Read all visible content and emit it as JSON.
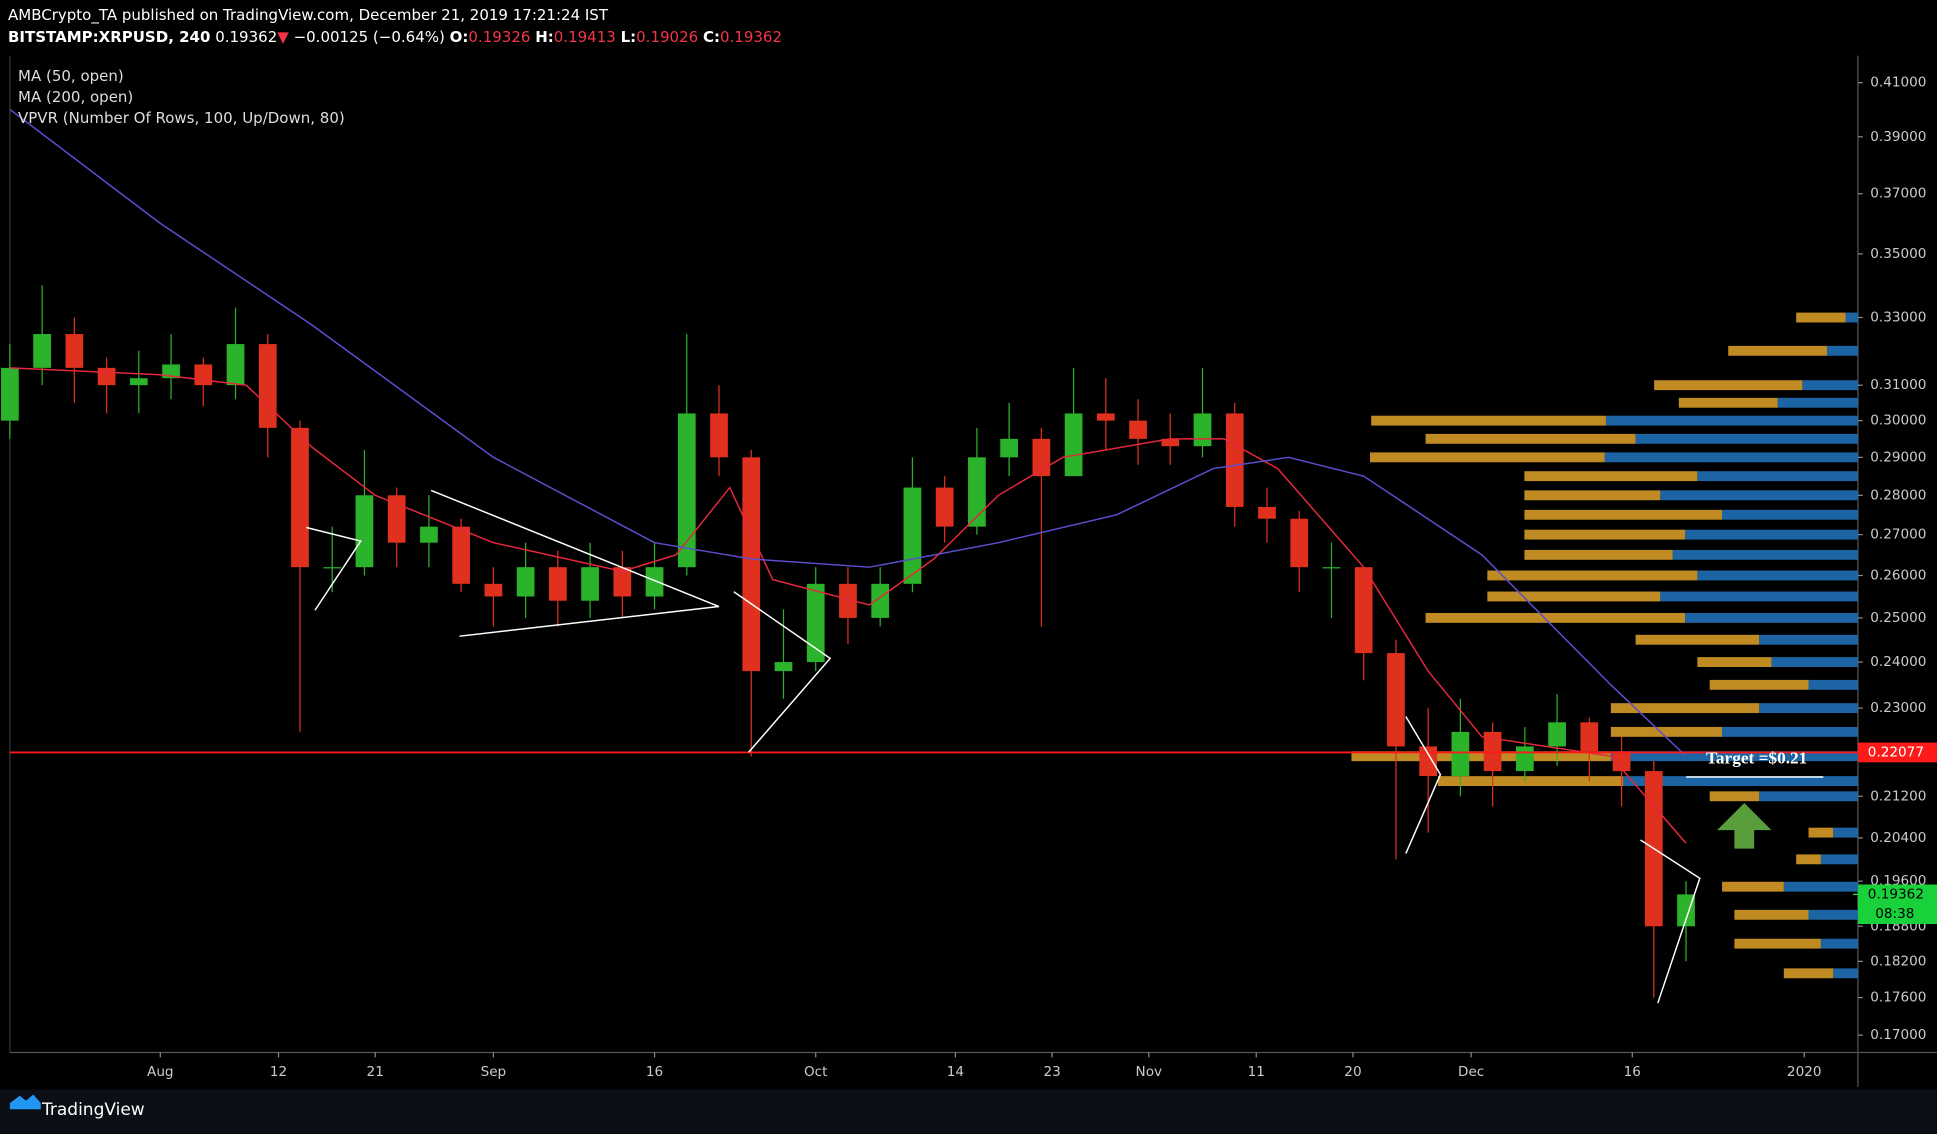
{
  "header": {
    "publisher": "AMBCrypto_TA published on TradingView.com, December 21, 2019 17:21:24 IST",
    "symbol": "BITSTAMP:XRPUSD, 240",
    "arrow": "▼",
    "change": "−0.00125 (−0.64%)",
    "ohlc_labels": [
      "O:",
      "H:",
      "L:",
      "C:"
    ],
    "ohlc_values": [
      0.19326,
      0.19413,
      0.19026,
      0.19362
    ]
  },
  "footer": {
    "brand": "TradingView"
  },
  "chart_data": {
    "type": "candlestick",
    "log": true,
    "grid": false,
    "up_color": "#2bb32b",
    "down_color": "#e0301e",
    "xlim": [
      "2019-07-18",
      "2020-01-06"
    ],
    "xticks": [
      {
        "value": "2019-08-01",
        "label": "Aug"
      },
      {
        "value": "2019-08-12",
        "label": "12"
      },
      {
        "value": "2019-08-21",
        "label": "21"
      },
      {
        "value": "2019-09-01",
        "label": "Sep"
      },
      {
        "value": "2019-09-16",
        "label": "16"
      },
      {
        "value": "2019-10-01",
        "label": "Oct"
      },
      {
        "value": "2019-10-14",
        "label": "14"
      },
      {
        "value": "2019-10-23",
        "label": "23"
      },
      {
        "value": "2019-11-01",
        "label": "Nov"
      },
      {
        "value": "2019-11-11",
        "label": "11"
      },
      {
        "value": "2019-11-20",
        "label": "20"
      },
      {
        "value": "2019-12-01",
        "label": "Dec"
      },
      {
        "value": "2019-12-16",
        "label": "16"
      },
      {
        "value": "2020-01-01",
        "label": "2020"
      }
    ],
    "ylim": [
      0.1673,
      0.4204
    ],
    "yticks": [
      {
        "value": 0.41,
        "label": "0.41000"
      },
      {
        "value": 0.39,
        "label": "0.39000"
      },
      {
        "value": 0.37,
        "label": "0.37000"
      },
      {
        "value": 0.35,
        "label": "0.35000"
      },
      {
        "value": 0.33,
        "label": "0.33000"
      },
      {
        "value": 0.31,
        "label": "0.31000"
      },
      {
        "value": 0.3,
        "label": "0.30000"
      },
      {
        "value": 0.29,
        "label": "0.29000"
      },
      {
        "value": 0.28,
        "label": "0.28000"
      },
      {
        "value": 0.27,
        "label": "0.27000"
      },
      {
        "value": 0.26,
        "label": "0.26000"
      },
      {
        "value": 0.25,
        "label": "0.25000"
      },
      {
        "value": 0.24,
        "label": "0.24000"
      },
      {
        "value": 0.23,
        "label": "0.23000"
      },
      {
        "value": 0.212,
        "label": "0.21200"
      },
      {
        "value": 0.204,
        "label": "0.20400"
      },
      {
        "value": 0.196,
        "label": "0.19600"
      },
      {
        "value": 0.188,
        "label": "0.18800"
      },
      {
        "value": 0.182,
        "label": "0.18200"
      },
      {
        "value": 0.176,
        "label": "0.17600"
      },
      {
        "value": 0.17,
        "label": "0.17000"
      }
    ],
    "x": [
      "2019-07-18",
      "2019-07-21",
      "2019-07-24",
      "2019-07-27",
      "2019-07-30",
      "2019-08-02",
      "2019-08-05",
      "2019-08-08",
      "2019-08-11",
      "2019-08-14",
      "2019-08-17",
      "2019-08-20",
      "2019-08-23",
      "2019-08-26",
      "2019-08-29",
      "2019-09-01",
      "2019-09-04",
      "2019-09-07",
      "2019-09-10",
      "2019-09-13",
      "2019-09-16",
      "2019-09-19",
      "2019-09-22",
      "2019-09-25",
      "2019-09-28",
      "2019-10-01",
      "2019-10-04",
      "2019-10-07",
      "2019-10-10",
      "2019-10-13",
      "2019-10-16",
      "2019-10-19",
      "2019-10-22",
      "2019-10-25",
      "2019-10-28",
      "2019-10-31",
      "2019-11-03",
      "2019-11-06",
      "2019-11-09",
      "2019-11-12",
      "2019-11-15",
      "2019-11-18",
      "2019-11-21",
      "2019-11-24",
      "2019-11-27",
      "2019-11-30",
      "2019-12-03",
      "2019-12-06",
      "2019-12-09",
      "2019-12-12",
      "2019-12-15",
      "2019-12-18",
      "2019-12-21"
    ],
    "open": [
      0.3,
      0.315,
      0.325,
      0.315,
      0.31,
      0.312,
      0.316,
      0.31,
      0.322,
      0.298,
      0.262,
      0.262,
      0.28,
      0.268,
      0.272,
      0.258,
      0.255,
      0.262,
      0.254,
      0.262,
      0.255,
      0.262,
      0.302,
      0.29,
      0.238,
      0.24,
      0.258,
      0.25,
      0.258,
      0.282,
      0.272,
      0.29,
      0.295,
      0.285,
      0.302,
      0.3,
      0.295,
      0.293,
      0.302,
      0.277,
      0.274,
      0.262,
      0.262,
      0.242,
      0.222,
      0.216,
      0.225,
      0.217,
      0.222,
      0.227,
      0.221,
      0.217,
      0.188
    ],
    "high": [
      0.322,
      0.34,
      0.33,
      0.318,
      0.32,
      0.325,
      0.318,
      0.333,
      0.325,
      0.3,
      0.272,
      0.292,
      0.282,
      0.28,
      0.274,
      0.262,
      0.268,
      0.266,
      0.268,
      0.266,
      0.268,
      0.325,
      0.31,
      0.292,
      0.252,
      0.262,
      0.262,
      0.262,
      0.29,
      0.285,
      0.298,
      0.305,
      0.298,
      0.315,
      0.312,
      0.306,
      0.302,
      0.315,
      0.305,
      0.282,
      0.276,
      0.268,
      0.262,
      0.245,
      0.23,
      0.232,
      0.227,
      0.226,
      0.233,
      0.228,
      0.224,
      0.219,
      0.196
    ],
    "low": [
      0.295,
      0.31,
      0.305,
      0.302,
      0.302,
      0.306,
      0.304,
      0.306,
      0.29,
      0.225,
      0.256,
      0.26,
      0.262,
      0.262,
      0.256,
      0.248,
      0.25,
      0.248,
      0.25,
      0.25,
      0.252,
      0.26,
      0.285,
      0.22,
      0.232,
      0.238,
      0.244,
      0.248,
      0.256,
      0.268,
      0.27,
      0.285,
      0.248,
      0.285,
      0.292,
      0.288,
      0.288,
      0.29,
      0.272,
      0.268,
      0.256,
      0.25,
      0.236,
      0.2,
      0.205,
      0.212,
      0.21,
      0.215,
      0.218,
      0.215,
      0.21,
      0.176,
      0.182
    ],
    "close": [
      0.315,
      0.325,
      0.315,
      0.31,
      0.312,
      0.316,
      0.31,
      0.322,
      0.298,
      0.262,
      0.262,
      0.28,
      0.268,
      0.272,
      0.258,
      0.255,
      0.262,
      0.254,
      0.262,
      0.255,
      0.262,
      0.302,
      0.29,
      0.238,
      0.24,
      0.258,
      0.25,
      0.258,
      0.282,
      0.272,
      0.29,
      0.295,
      0.285,
      0.302,
      0.3,
      0.295,
      0.293,
      0.302,
      0.277,
      0.274,
      0.262,
      0.262,
      0.242,
      0.222,
      0.216,
      0.225,
      0.217,
      0.222,
      0.227,
      0.221,
      0.217,
      0.188,
      0.19362
    ],
    "overlays": [
      {
        "name": "MA (50, open)",
        "color": "#e5283c",
        "x": [
          "2019-07-18",
          "2019-08-01",
          "2019-08-09",
          "2019-08-15",
          "2019-08-21",
          "2019-09-01",
          "2019-09-13",
          "2019-09-18",
          "2019-09-23",
          "2019-09-27",
          "2019-10-06",
          "2019-10-12",
          "2019-10-18",
          "2019-10-24",
          "2019-11-03",
          "2019-11-08",
          "2019-11-13",
          "2019-11-21",
          "2019-11-27",
          "2019-12-02",
          "2019-12-14",
          "2019-12-21"
        ],
        "values": [
          0.315,
          0.313,
          0.31,
          0.293,
          0.28,
          0.268,
          0.261,
          0.265,
          0.282,
          0.259,
          0.253,
          0.264,
          0.28,
          0.29,
          0.295,
          0.295,
          0.287,
          0.262,
          0.238,
          0.224,
          0.22,
          0.203
        ]
      },
      {
        "name": "MA (200, open)",
        "color": "#5b4fd0",
        "x": [
          "2019-07-18",
          "2019-08-01",
          "2019-08-15",
          "2019-09-01",
          "2019-09-16",
          "2019-09-25",
          "2019-10-06",
          "2019-10-18",
          "2019-10-29",
          "2019-11-07",
          "2019-11-14",
          "2019-11-21",
          "2019-12-02",
          "2019-12-14",
          "2019-12-21"
        ],
        "values": [
          0.4,
          0.36,
          0.328,
          0.29,
          0.268,
          0.264,
          0.262,
          0.268,
          0.275,
          0.287,
          0.29,
          0.285,
          0.265,
          0.235,
          0.22
        ]
      }
    ],
    "vpvr": {
      "name": "VPVR (Number Of Rows, 100, Up/Down, 80)",
      "up_color": "#1f6fb5",
      "down_color": "#d49a26",
      "rows": [
        0.33,
        0.32,
        0.31,
        0.305,
        0.3,
        0.295,
        0.29,
        0.285,
        0.28,
        0.275,
        0.27,
        0.265,
        0.26,
        0.255,
        0.25,
        0.245,
        0.24,
        0.235,
        0.23,
        0.225,
        0.22,
        0.215,
        0.212,
        0.205,
        0.2,
        0.195,
        0.19,
        0.185,
        0.18
      ],
      "up": [
        10,
        25,
        45,
        65,
        204,
        180,
        205,
        130,
        160,
        110,
        140,
        150,
        130,
        160,
        140,
        80,
        70,
        40,
        80,
        110,
        200,
        190,
        80,
        20,
        30,
        60,
        40,
        30,
        20
      ],
      "down": [
        40,
        80,
        120,
        80,
        190,
        170,
        190,
        140,
        110,
        160,
        130,
        120,
        170,
        140,
        210,
        100,
        60,
        80,
        120,
        90,
        210,
        150,
        40,
        20,
        20,
        50,
        60,
        70,
        40
      ]
    },
    "hline": {
      "value": 0.22077,
      "color": "#ff1a1a"
    },
    "last_price": 0.19362,
    "countdown": "08:38",
    "annotations": [
      "Target =$0.21"
    ]
  }
}
